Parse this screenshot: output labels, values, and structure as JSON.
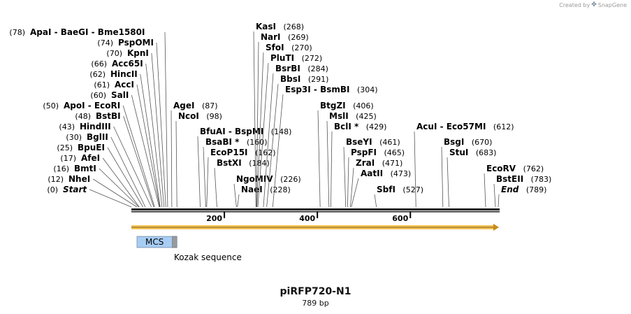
{
  "credit": {
    "prefix": "Created by",
    "logo": "SnapGene",
    "logo_icon": "snapgene-logo-icon"
  },
  "map": {
    "title": "piRFP720-N1",
    "length_text": "789 bp",
    "length": 789,
    "ticks": [
      200,
      400,
      600
    ],
    "sites": [
      {
        "name": "Start",
        "pos": 0,
        "label": "(0)",
        "italic": true
      },
      {
        "name": "NheI",
        "pos": 12,
        "label": "(12)"
      },
      {
        "name": "BmtI",
        "pos": 16,
        "label": "(16)"
      },
      {
        "name": "AfeI",
        "pos": 17,
        "label": "(17)"
      },
      {
        "name": "BpuEI",
        "pos": 25,
        "label": "(25)"
      },
      {
        "name": "BglII",
        "pos": 30,
        "label": "(30)"
      },
      {
        "name": "HindIII",
        "pos": 43,
        "label": "(43)"
      },
      {
        "name": "BstBI",
        "pos": 48,
        "label": "(48)"
      },
      {
        "name": "ApoI - EcoRI",
        "pos": 50,
        "label": "(50)"
      },
      {
        "name": "SalI",
        "pos": 60,
        "label": "(60)"
      },
      {
        "name": "AccI",
        "pos": 61,
        "label": "(61)"
      },
      {
        "name": "HincII",
        "pos": 62,
        "label": "(62)"
      },
      {
        "name": "Acc65I",
        "pos": 66,
        "label": "(66)"
      },
      {
        "name": "KpnI",
        "pos": 70,
        "label": "(70)"
      },
      {
        "name": "PspOMI",
        "pos": 74,
        "label": "(74)"
      },
      {
        "name": "ApaI - BaeGI - Bme1580I",
        "pos": 78,
        "label": "(78)"
      },
      {
        "name": "AgeI",
        "pos": 87,
        "label": "(87)"
      },
      {
        "name": "NcoI",
        "pos": 98,
        "label": "(98)"
      },
      {
        "name": "BfuAI - BspMI",
        "pos": 148,
        "label": "(148)"
      },
      {
        "name": "BsaBI *",
        "pos": 160,
        "label": "(160)"
      },
      {
        "name": "EcoP15I",
        "pos": 162,
        "label": "(162)"
      },
      {
        "name": "BstXI",
        "pos": 184,
        "label": "(184)"
      },
      {
        "name": "NgoMIV",
        "pos": 226,
        "label": "(226)"
      },
      {
        "name": "NaeI",
        "pos": 228,
        "label": "(228)"
      },
      {
        "name": "KasI",
        "pos": 268,
        "label": "(268)"
      },
      {
        "name": "NarI",
        "pos": 269,
        "label": "(269)"
      },
      {
        "name": "SfoI",
        "pos": 270,
        "label": "(270)"
      },
      {
        "name": "PluTI",
        "pos": 272,
        "label": "(272)"
      },
      {
        "name": "BsrBI",
        "pos": 284,
        "label": "(284)"
      },
      {
        "name": "BbsI",
        "pos": 291,
        "label": "(291)"
      },
      {
        "name": "Esp3I - BsmBI",
        "pos": 304,
        "label": "(304)"
      },
      {
        "name": "BtgZI",
        "pos": 406,
        "label": "(406)"
      },
      {
        "name": "MslI",
        "pos": 425,
        "label": "(425)"
      },
      {
        "name": "BclI *",
        "pos": 429,
        "label": "(429)"
      },
      {
        "name": "BseYI",
        "pos": 461,
        "label": "(461)"
      },
      {
        "name": "PspFI",
        "pos": 465,
        "label": "(465)"
      },
      {
        "name": "ZraI",
        "pos": 471,
        "label": "(471)"
      },
      {
        "name": "AatII",
        "pos": 473,
        "label": "(473)"
      },
      {
        "name": "SbfI",
        "pos": 527,
        "label": "(527)"
      },
      {
        "name": "AcuI - Eco57MI",
        "pos": 612,
        "label": "(612)"
      },
      {
        "name": "BsgI",
        "pos": 670,
        "label": "(670)"
      },
      {
        "name": "StuI",
        "pos": 683,
        "label": "(683)"
      },
      {
        "name": "EcoRV",
        "pos": 762,
        "label": "(762)"
      },
      {
        "name": "BstEII",
        "pos": 783,
        "label": "(783)"
      },
      {
        "name": "End",
        "pos": 789,
        "label": "(789)",
        "italic": true
      }
    ],
    "features": [
      {
        "name": "MCS",
        "start": 12,
        "end": 98,
        "color": "#a8cdf4"
      },
      {
        "name": "Kozak sequence",
        "start": 88,
        "end": 98,
        "color": "#9a9a9a"
      }
    ],
    "orf": {
      "start": 0,
      "end": 789,
      "color": "#f6c55a"
    }
  }
}
